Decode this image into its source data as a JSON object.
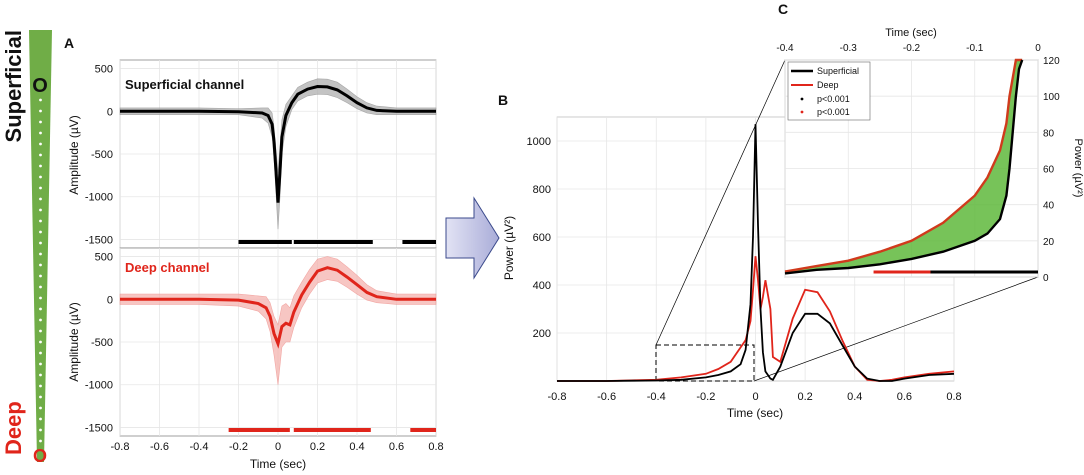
{
  "colors": {
    "superficial": "#000000",
    "deep": "#e0251b",
    "probe": "#70ad47",
    "fill": "#5fb83c",
    "superficial_band": "#b0b0b0",
    "deep_band": "#f5b3b0",
    "arrow": "#c7c9e8"
  },
  "probe": {
    "top_label": "Superficial",
    "bottom_label": "Deep",
    "top_marker": "O",
    "bottom_marker": "O"
  },
  "panel_a": {
    "letter": "A",
    "xlabel": "Time (sec)",
    "xticks": [
      "-0.8",
      "-0.6",
      "-0.4",
      "-0.2",
      "0",
      "0.2",
      "0.4",
      "0.6",
      "0.8"
    ],
    "top": {
      "title": "Superficial channel",
      "ylabel": "Amplitude (µV)",
      "yticks": [
        "500",
        "0",
        "-500",
        "-1000",
        "-1500"
      ]
    },
    "bottom": {
      "title": "Deep channel",
      "ylabel": "Amplitude (µV)",
      "yticks": [
        "500",
        "0",
        "-500",
        "-1000",
        "-1500"
      ]
    }
  },
  "panel_b": {
    "letter": "B",
    "xlabel": "Time (sec)",
    "ylabel": "Power (µV²)",
    "xticks": [
      "-0.8",
      "-0.6",
      "-0.4",
      "-0.2",
      "0",
      "0.2",
      "0.4",
      "0.6",
      "0.8"
    ],
    "yticks": [
      "1000",
      "800",
      "600",
      "400",
      "200"
    ]
  },
  "panel_c": {
    "letter": "C",
    "xlabel": "Time (sec)",
    "ylabel": "Power (µV²)",
    "xticks": [
      "-0.4",
      "-0.3",
      "-0.2",
      "-0.1",
      "0"
    ],
    "yticks": [
      "120",
      "100",
      "80",
      "60",
      "40",
      "20",
      "0"
    ],
    "legend": [
      "Superficial",
      "Deep",
      "p<0.001",
      "p<0.001"
    ]
  },
  "chart_data": [
    {
      "type": "line",
      "title": "Superficial channel",
      "xlabel": "Time (sec)",
      "ylabel": "Amplitude (µV)",
      "xlim": [
        -0.8,
        0.8
      ],
      "ylim": [
        -1600,
        600
      ],
      "x": [
        -0.8,
        -0.6,
        -0.4,
        -0.2,
        -0.08,
        -0.05,
        -0.03,
        -0.02,
        -0.01,
        0,
        0.01,
        0.02,
        0.04,
        0.07,
        0.1,
        0.15,
        0.2,
        0.25,
        0.3,
        0.35,
        0.4,
        0.45,
        0.5,
        0.6,
        0.7,
        0.8
      ],
      "series": [
        {
          "name": "mean",
          "values": [
            0,
            0,
            0,
            -5,
            -20,
            -50,
            -150,
            -350,
            -700,
            -1070,
            -700,
            -300,
            -50,
            100,
            200,
            260,
            290,
            285,
            250,
            180,
            100,
            40,
            10,
            0,
            0,
            0
          ]
        },
        {
          "name": "upper",
          "values": [
            40,
            40,
            40,
            30,
            40,
            40,
            -20,
            -180,
            -450,
            -720,
            -400,
            -100,
            80,
            180,
            280,
            340,
            380,
            375,
            340,
            260,
            170,
            100,
            60,
            40,
            40,
            40
          ]
        },
        {
          "name": "lower",
          "values": [
            -40,
            -40,
            -40,
            -40,
            -80,
            -140,
            -300,
            -550,
            -960,
            -1380,
            -1000,
            -500,
            -180,
            20,
            120,
            180,
            200,
            195,
            160,
            100,
            30,
            -20,
            -40,
            -40,
            -40,
            -40
          ]
        }
      ],
      "significance_segments": [
        [
          -0.2,
          0.07
        ],
        [
          0.08,
          0.48
        ],
        [
          0.63,
          0.8
        ]
      ]
    },
    {
      "type": "line",
      "title": "Deep channel",
      "xlabel": "Time (sec)",
      "ylabel": "Amplitude (µV)",
      "xlim": [
        -0.8,
        0.8
      ],
      "ylim": [
        -1600,
        600
      ],
      "x": [
        -0.8,
        -0.6,
        -0.4,
        -0.2,
        -0.1,
        -0.06,
        -0.04,
        -0.02,
        0,
        0.02,
        0.04,
        0.06,
        0.08,
        0.12,
        0.16,
        0.2,
        0.25,
        0.3,
        0.35,
        0.4,
        0.45,
        0.5,
        0.6,
        0.7,
        0.8
      ],
      "series": [
        {
          "name": "mean",
          "values": [
            0,
            0,
            0,
            -10,
            -50,
            -100,
            -200,
            -400,
            -520,
            -320,
            -280,
            -300,
            -150,
            50,
            200,
            330,
            370,
            340,
            260,
            170,
            80,
            30,
            0,
            0,
            0
          ]
        },
        {
          "name": "upper",
          "values": [
            60,
            60,
            60,
            60,
            40,
            30,
            -40,
            -200,
            -300,
            -80,
            -50,
            -100,
            40,
            200,
            350,
            470,
            500,
            470,
            380,
            280,
            170,
            100,
            60,
            60,
            60
          ]
        },
        {
          "name": "lower",
          "values": [
            -60,
            -60,
            -60,
            -80,
            -140,
            -230,
            -380,
            -650,
            -1000,
            -560,
            -500,
            -500,
            -330,
            -100,
            60,
            190,
            230,
            210,
            140,
            60,
            -10,
            -40,
            -60,
            -60,
            -60
          ]
        }
      ],
      "significance_segments": [
        [
          -0.25,
          0.06
        ],
        [
          0.08,
          0.47
        ],
        [
          0.67,
          0.8
        ]
      ]
    },
    {
      "type": "line",
      "title": "",
      "xlabel": "Time (sec)",
      "ylabel": "Power (µV²)",
      "xlim": [
        -0.8,
        0.8
      ],
      "ylim": [
        0,
        1100
      ],
      "x": [
        -0.8,
        -0.6,
        -0.4,
        -0.3,
        -0.2,
        -0.15,
        -0.1,
        -0.06,
        -0.04,
        -0.02,
        -0.01,
        0,
        0.01,
        0.02,
        0.03,
        0.04,
        0.06,
        0.07,
        0.1,
        0.15,
        0.2,
        0.25,
        0.3,
        0.35,
        0.4,
        0.45,
        0.5,
        0.55,
        0.6,
        0.7,
        0.8
      ],
      "series": [
        {
          "name": "Superficial",
          "values": [
            0,
            0,
            2,
            5,
            15,
            25,
            40,
            70,
            130,
            320,
            600,
            1070,
            650,
            300,
            120,
            40,
            10,
            5,
            60,
            200,
            280,
            280,
            240,
            150,
            60,
            10,
            0,
            0,
            10,
            25,
            30
          ]
        },
        {
          "name": "Deep",
          "values": [
            0,
            0,
            5,
            15,
            30,
            50,
            80,
            140,
            170,
            250,
            380,
            520,
            420,
            300,
            350,
            420,
            300,
            100,
            80,
            260,
            380,
            370,
            290,
            170,
            60,
            5,
            0,
            5,
            15,
            30,
            40
          ]
        }
      ]
    },
    {
      "type": "area",
      "title": "",
      "xlabel": "Time (sec)",
      "ylabel": "Power (µV²)",
      "xlim": [
        -0.4,
        0
      ],
      "ylim": [
        0,
        120
      ],
      "x": [
        -0.4,
        -0.35,
        -0.3,
        -0.25,
        -0.2,
        -0.15,
        -0.1,
        -0.08,
        -0.06,
        -0.05,
        -0.045,
        -0.04,
        -0.035,
        -0.03,
        -0.025
      ],
      "series": [
        {
          "name": "Superficial",
          "values": [
            2,
            4,
            5,
            7,
            10,
            14,
            20,
            24,
            32,
            45,
            60,
            80,
            100,
            115,
            120
          ]
        },
        {
          "name": "Deep",
          "values": [
            3,
            6,
            9,
            14,
            20,
            30,
            45,
            55,
            70,
            85,
            100,
            110,
            120,
            120,
            120
          ]
        }
      ],
      "legend": [
        "Superficial",
        "Deep",
        "p<0.001",
        "p<0.001"
      ],
      "significance_segments": [
        {
          "series": "Superficial",
          "range": [
            -0.17,
            0
          ]
        },
        {
          "series": "Deep",
          "range": [
            -0.26,
            0
          ]
        }
      ]
    }
  ]
}
